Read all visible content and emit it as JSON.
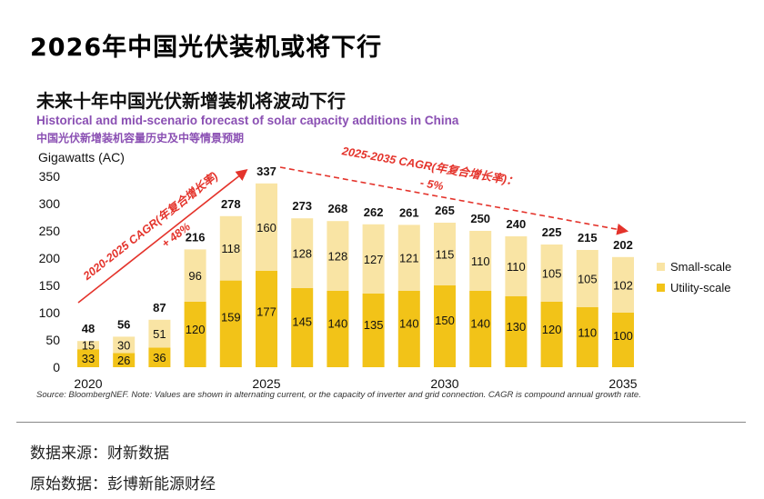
{
  "header": {
    "title": "2026年中国光伏装机或将下行"
  },
  "chart_header": {
    "cn_title": "未来十年中国光伏新增装机将波动下行",
    "en_subtitle": "Historical and mid-scenario forecast of solar capacity additions in China",
    "cn_subtitle": "中国光伏新增装机容量历史及中等情景预期",
    "unit": "Gigawatts (AC)"
  },
  "chart_data": {
    "type": "bar",
    "stacked": true,
    "categories": [
      "2020",
      "2021",
      "2022",
      "2023",
      "2024",
      "2025",
      "2026",
      "2027",
      "2028",
      "2029",
      "2030",
      "2031",
      "2032",
      "2033",
      "2034",
      "2035"
    ],
    "tick_labels": [
      "2020",
      "",
      "",
      "",
      "",
      "2025",
      "",
      "",
      "",
      "",
      "2030",
      "",
      "",
      "",
      "",
      "2035"
    ],
    "series": [
      {
        "name": "Utility-scale",
        "color": "#f2c318",
        "values": [
          33,
          26,
          36,
          120,
          159,
          177,
          145,
          140,
          135,
          140,
          150,
          140,
          130,
          120,
          110,
          100
        ]
      },
      {
        "name": "Small-scale",
        "color": "#f9e4a4",
        "values": [
          15,
          30,
          51,
          96,
          118,
          160,
          128,
          128,
          127,
          121,
          115,
          110,
          110,
          105,
          105,
          102
        ]
      }
    ],
    "totals": [
      48,
      56,
      87,
      216,
      278,
      337,
      273,
      268,
      262,
      261,
      265,
      250,
      240,
      225,
      215,
      202
    ],
    "ylim": [
      0,
      350
    ],
    "yticks": [
      0,
      50,
      100,
      150,
      200,
      250,
      300,
      350
    ],
    "legend": [
      "Small-scale",
      "Utility-scale"
    ],
    "legend_position": "right",
    "annotations": {
      "cagr_up": {
        "label": "2020-2025 CAGR(年复合增长率)",
        "value": "+ 48%",
        "color": "#e4332b"
      },
      "cagr_down": {
        "label": "2025-2035 CAGR(年复合增长率)：",
        "value": "- 5%",
        "color": "#e4332b"
      }
    }
  },
  "source": "Source: BloombergNEF. Note: Values are shown in alternating current, or the capacity of inverter and grid connection. CAGR is compound annual growth rate.",
  "footer": {
    "data_source": "数据来源：财新数据",
    "raw_data": "原始数据：彭博新能源财经"
  }
}
